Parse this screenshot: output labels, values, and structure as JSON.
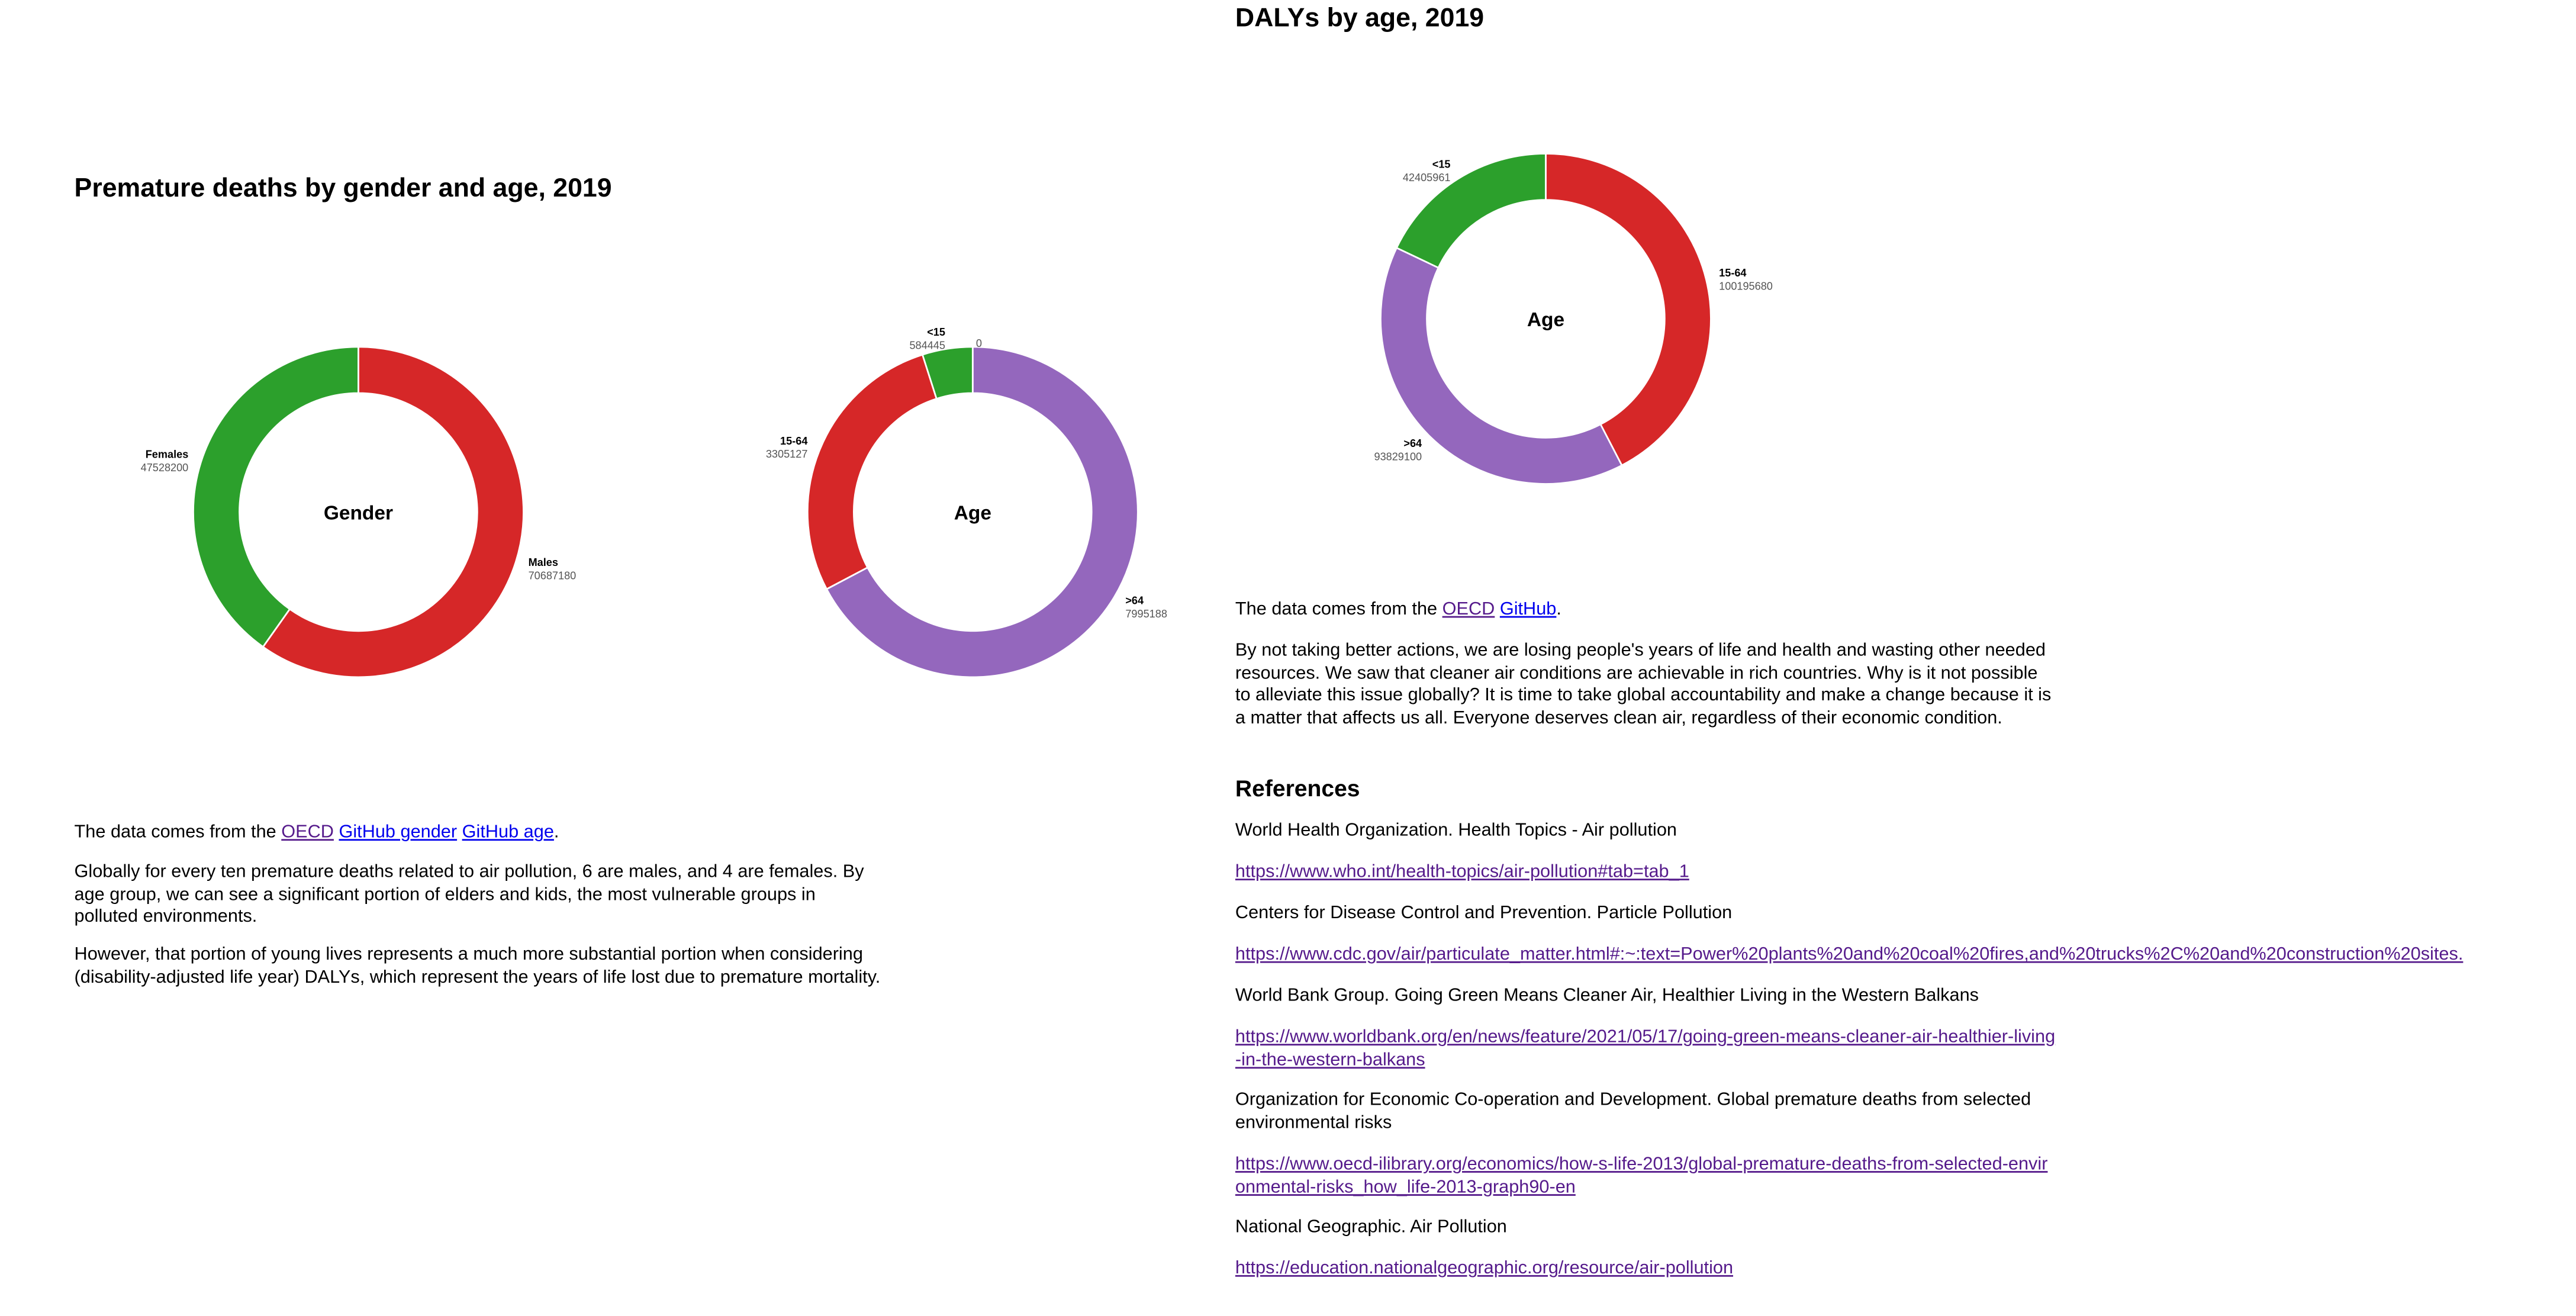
{
  "left": {
    "title": "Premature deaths by gender and age, 2019",
    "source": {
      "prefix": "The data comes from the ",
      "links": [
        "OECD",
        "GitHub gender",
        "GitHub age"
      ],
      "suffix": "."
    },
    "paragraph1": "Globally for every ten premature deaths related to air pollution, 6 are males, and 4 are females. By age group, we can see a significant portion of elders and kids, the most vulnerable groups in polluted environments.",
    "paragraph2": "However, that portion of young lives represents a much more substantial portion when considering (disability-adjusted life year) DALYs, which represent the years of life lost due to premature mortality."
  },
  "right": {
    "title": "DALYs by age, 2019",
    "source": {
      "prefix": "The data comes from the ",
      "links": [
        "OECD",
        "GitHub"
      ],
      "suffix": "."
    },
    "paragraph": "By not taking better actions, we are losing people's years of life and health and wasting other needed resources. We saw that cleaner air conditions are achievable in rich countries. Why is it not possible to alleviate this issue globally? It is time to take global accountability and make a change because it is a matter that affects us all. Everyone deserves clean air, regardless of their economic condition.",
    "references_heading": "References",
    "references": [
      {
        "title": "World Health Organization. Health Topics - Air pollution",
        "url": "https://www.who.int/health-topics/air-pollution#tab=tab_1"
      },
      {
        "title": "Centers for Disease Control and Prevention. Particle Pollution",
        "url": "https://www.cdc.gov/air/particulate_matter.html#:~:text=Power%20plants%20and%20coal%20fires,and%20trucks%2C%20and%20construction%20sites."
      },
      {
        "title": "World Bank Group. Going Green Means Cleaner Air, Healthier Living in the Western Balkans",
        "url": "https://www.worldbank.org/en/news/feature/2021/05/17/going-green-means-cleaner-air-healthier-living-in-the-western-balkans"
      },
      {
        "title": "Organization for Economic Co-operation and Development. Global premature deaths from selected environmental risks",
        "url": "https://www.oecd-ilibrary.org/economics/how-s-life-2013/global-premature-deaths-from-selected-environmental-risks_how_life-2013-graph90-en"
      },
      {
        "title": "National Geographic. Air Pollution",
        "url": "https://education.nationalgeographic.org/resource/air-pollution"
      }
    ]
  },
  "colors": {
    "red": "#d62728",
    "green": "#2ca02c",
    "purple": "#9467bd",
    "link": "#0000ee",
    "visited": "#551a8b"
  },
  "chart_data": [
    {
      "type": "pie",
      "center_label": "Gender",
      "categories": [
        "Males",
        "Females"
      ],
      "values": [
        70687180,
        47528200
      ],
      "value_labels": [
        "70687180",
        "47528200"
      ],
      "colors": [
        "#d62728",
        "#2ca02c"
      ]
    },
    {
      "type": "pie",
      "center_label": "Age",
      "categories": [
        ">64",
        "15-64",
        "<15",
        ""
      ],
      "values": [
        7995188,
        3305127,
        584445,
        0
      ],
      "value_labels": [
        "7995188",
        "3305127",
        "584445",
        "0"
      ],
      "colors": [
        "#9467bd",
        "#d62728",
        "#2ca02c",
        "#9467bd"
      ]
    },
    {
      "type": "pie",
      "center_label": "Age",
      "categories": [
        "15-64",
        ">64",
        "<15"
      ],
      "values": [
        100195680,
        93829100,
        42405961
      ],
      "value_labels": [
        "100195680",
        "93829100",
        "42405961"
      ],
      "colors": [
        "#d62728",
        "#9467bd",
        "#2ca02c"
      ]
    }
  ]
}
